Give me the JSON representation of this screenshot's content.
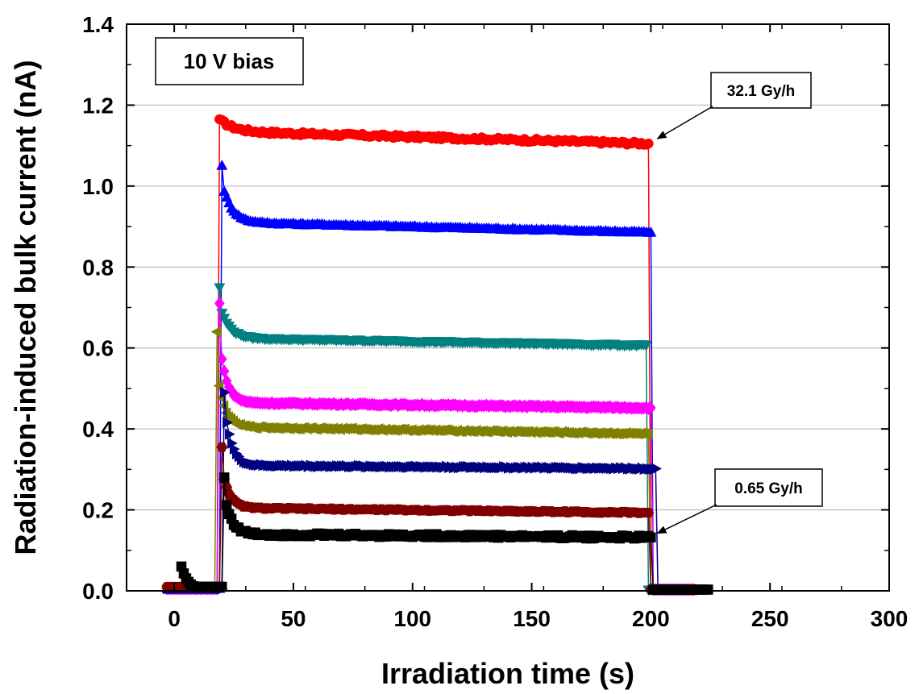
{
  "chart_data": {
    "type": "line",
    "title": "",
    "xlabel": "Irradiation time (s)",
    "ylabel": "Radiation-induced bulk current (nA)",
    "xlim": [
      -20,
      300
    ],
    "ylim": [
      0.0,
      1.4
    ],
    "x_ticks": [
      0,
      50,
      100,
      150,
      200,
      250,
      300
    ],
    "y_ticks": [
      0.0,
      0.2,
      0.4,
      0.6,
      0.8,
      1.0,
      1.2,
      1.4
    ],
    "x_tick_labels": [
      "0",
      "50",
      "100",
      "150",
      "200",
      "250",
      "300"
    ],
    "y_tick_labels": [
      "0.0",
      "0.2",
      "0.4",
      "0.6",
      "0.8",
      "1.0",
      "1.2",
      "1.4"
    ],
    "grid": "horizontal",
    "inset_label": "10 V bias",
    "annotations": [
      {
        "text": "32.1 Gy/h",
        "points_to": {
          "x": 200,
          "y": 1.105
        }
      },
      {
        "text": "0.65 Gy/h",
        "points_to": {
          "x": 200,
          "y": 0.13
        }
      }
    ],
    "series": [
      {
        "color": "#ff0000",
        "marker": "circle",
        "on_time": 19,
        "off_time": 199,
        "end_time": 219,
        "peak": 1.165,
        "decay_amplitude": 0.03,
        "decay_tau": 6,
        "plateau_start": 1.135,
        "plateau_end": 1.105,
        "noise": 0.004,
        "pre_level": 0.01
      },
      {
        "color": "#0000ff",
        "marker": "triangle-up",
        "on_time": 20,
        "off_time": 200,
        "end_time": 218,
        "peak": 1.05,
        "decay_amplitude": 0.1,
        "decay_tau": 4,
        "plateau_start": 0.91,
        "plateau_end": 0.885,
        "noise": 0.002,
        "pre_level": 0.005
      },
      {
        "color": "#008080",
        "marker": "triangle-down",
        "on_time": 19,
        "off_time": 198,
        "end_time": 219,
        "peak": 0.75,
        "decay_amplitude": 0.08,
        "decay_tau": 4,
        "plateau_start": 0.625,
        "plateau_end": 0.607,
        "noise": 0.002,
        "pre_level": 0.005
      },
      {
        "color": "#ff00ff",
        "marker": "diamond",
        "on_time": 19,
        "off_time": 200,
        "end_time": 218,
        "peak": 0.71,
        "decay_amplitude": 0.15,
        "decay_tau": 3,
        "plateau_start": 0.465,
        "plateau_end": 0.452,
        "noise": 0.002,
        "pre_level": 0.005
      },
      {
        "color": "#808000",
        "marker": "triangle-left",
        "on_time": 18,
        "off_time": 199,
        "end_time": 218,
        "peak": 0.64,
        "decay_amplitude": 0.14,
        "decay_tau": 3,
        "plateau_start": 0.405,
        "plateau_end": 0.388,
        "noise": 0.002,
        "pre_level": 0.005
      },
      {
        "color": "#000080",
        "marker": "triangle-right",
        "on_time": 21,
        "off_time": 202,
        "end_time": 220,
        "peak": 0.49,
        "decay_amplitude": 0.15,
        "decay_tau": 3,
        "plateau_start": 0.31,
        "plateau_end": 0.302,
        "noise": 0.002,
        "pre_level": 0.005
      },
      {
        "color": "#800000",
        "marker": "hexagon",
        "on_time": 20,
        "off_time": 199,
        "end_time": 218,
        "peak": 0.355,
        "decay_amplitude": 0.1,
        "decay_tau": 3,
        "plateau_start": 0.205,
        "plateau_end": 0.193,
        "noise": 0.002,
        "pre_level": 0.01
      },
      {
        "color": "#000000",
        "marker": "square",
        "on_time": 21,
        "off_time": 200,
        "end_time": 224,
        "peak": 0.28,
        "decay_amplitude": 0.1,
        "decay_tau": 3,
        "plateau_start": 0.14,
        "plateau_end": 0.132,
        "noise": 0.004,
        "pre_level": 0.06,
        "pre_start": 3
      }
    ]
  }
}
